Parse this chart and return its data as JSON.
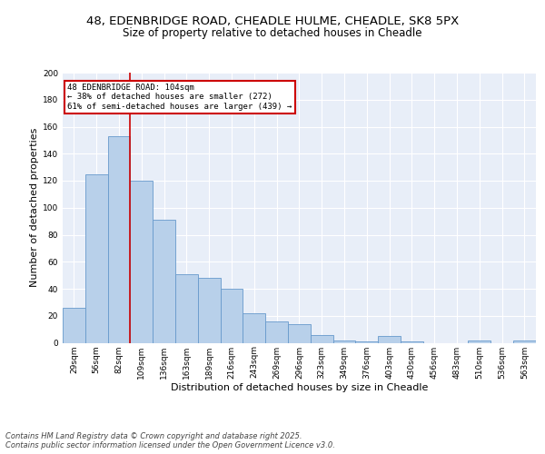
{
  "title1": "48, EDENBRIDGE ROAD, CHEADLE HULME, CHEADLE, SK8 5PX",
  "title2": "Size of property relative to detached houses in Cheadle",
  "xlabel": "Distribution of detached houses by size in Cheadle",
  "ylabel": "Number of detached properties",
  "categories": [
    "29sqm",
    "56sqm",
    "82sqm",
    "109sqm",
    "136sqm",
    "163sqm",
    "189sqm",
    "216sqm",
    "243sqm",
    "269sqm",
    "296sqm",
    "323sqm",
    "349sqm",
    "376sqm",
    "403sqm",
    "430sqm",
    "456sqm",
    "483sqm",
    "510sqm",
    "536sqm",
    "563sqm"
  ],
  "values": [
    26,
    125,
    153,
    120,
    91,
    51,
    48,
    40,
    22,
    16,
    14,
    6,
    2,
    1,
    5,
    1,
    0,
    0,
    2,
    0,
    2
  ],
  "bar_color": "#b8d0ea",
  "bar_edge_color": "#6699cc",
  "vline_color": "#cc0000",
  "vline_pos": 2.5,
  "annotation_text": "48 EDENBRIDGE ROAD: 104sqm\n← 38% of detached houses are smaller (272)\n61% of semi-detached houses are larger (439) →",
  "annotation_box_color": "#ffffff",
  "annotation_box_edge": "#cc0000",
  "ylim": [
    0,
    200
  ],
  "yticks": [
    0,
    20,
    40,
    60,
    80,
    100,
    120,
    140,
    160,
    180,
    200
  ],
  "background_color": "#e8eef8",
  "grid_color": "#ffffff",
  "footer1": "Contains HM Land Registry data © Crown copyright and database right 2025.",
  "footer2": "Contains public sector information licensed under the Open Government Licence v3.0.",
  "title_fontsize": 9.5,
  "subtitle_fontsize": 8.5,
  "axis_label_fontsize": 8,
  "tick_fontsize": 6.5,
  "annotation_fontsize": 6.5,
  "footer_fontsize": 6
}
